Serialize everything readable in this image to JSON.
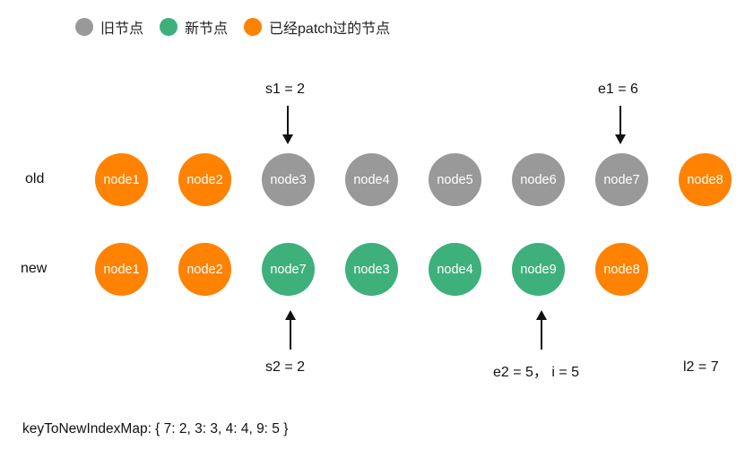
{
  "legend": {
    "items": [
      {
        "label": "旧节点",
        "color": "#999999"
      },
      {
        "label": "新节点",
        "color": "#3eb07c"
      },
      {
        "label": "已经patch过的节点",
        "color": "#ff8200"
      }
    ]
  },
  "rows": {
    "old": {
      "label": "old",
      "nodes": [
        {
          "text": "node1",
          "state": "patched"
        },
        {
          "text": "node2",
          "state": "patched"
        },
        {
          "text": "node3",
          "state": "old"
        },
        {
          "text": "node4",
          "state": "old"
        },
        {
          "text": "node5",
          "state": "old"
        },
        {
          "text": "node6",
          "state": "old"
        },
        {
          "text": "node7",
          "state": "old"
        },
        {
          "text": "node8",
          "state": "patched"
        }
      ]
    },
    "new": {
      "label": "new",
      "nodes": [
        {
          "text": "node1",
          "state": "patched"
        },
        {
          "text": "node2",
          "state": "patched"
        },
        {
          "text": "node7",
          "state": "new"
        },
        {
          "text": "node3",
          "state": "new"
        },
        {
          "text": "node4",
          "state": "new"
        },
        {
          "text": "node9",
          "state": "new"
        },
        {
          "text": "node8",
          "state": "patched"
        }
      ]
    }
  },
  "markers": {
    "s1": "s1 = 2",
    "e1": "e1 = 6",
    "s2": "s2 = 2",
    "e2_i": "e2 = 5，  i = 5",
    "l2": "l2 = 7"
  },
  "key_map": "keyToNewIndexMap: { 7: 2, 3: 3, 4: 4, 9: 5 }",
  "colors": {
    "old": "#999999",
    "new": "#3eb07c",
    "patched": "#ff8200"
  }
}
